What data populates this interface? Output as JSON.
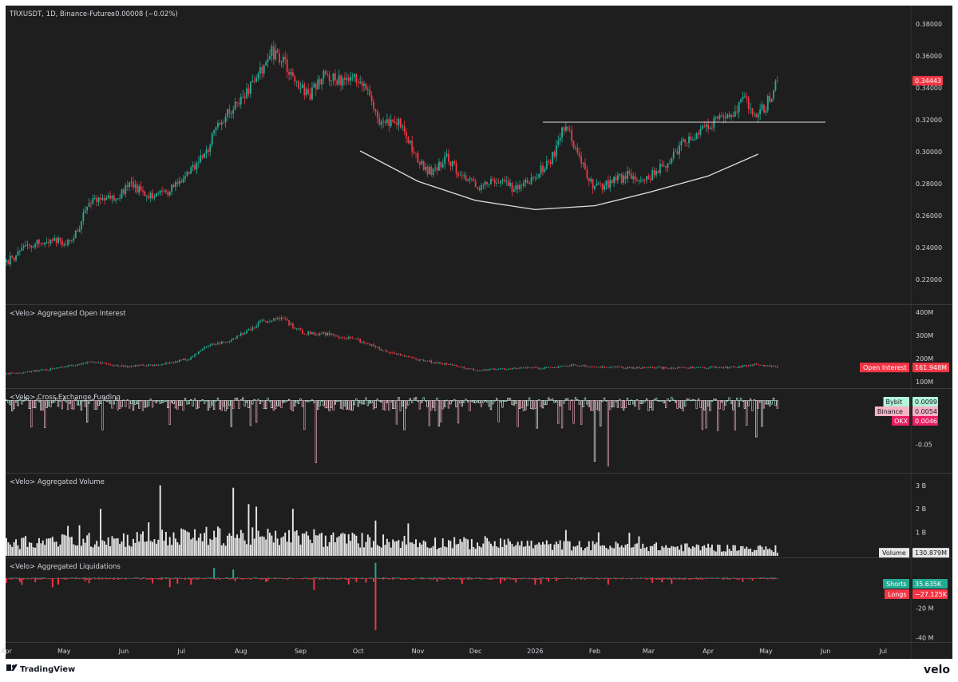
{
  "header": {
    "symbol_line": "TRXUSDT, 1D, Binance-Futures",
    "change": "−0.00008 (−0.02%)"
  },
  "footer": {
    "brand": "TradingView",
    "watermark": "velo"
  },
  "colors": {
    "up": "#22ab94",
    "down": "#f23645",
    "bg": "#1e1e1e",
    "panel_bg": "#161616",
    "grid": "#2b2b2b",
    "axis_text": "#d1d4dc",
    "line": "#e0e0e0",
    "price_tag": "#f23645",
    "bybit_tag": "#b2f5d9",
    "binance_tag": "#f7b3c6",
    "okx_tag": "#e91e63"
  },
  "chart_data": [
    {
      "type": "candlestick",
      "panel": "price",
      "x_range": [
        "2025-04-01",
        "2026-07-15"
      ],
      "ylim": [
        0.206,
        0.384
      ],
      "y_ticks": [
        "0.22000",
        "0.24000",
        "0.26000",
        "0.28000",
        "0.30000",
        "0.32000",
        "0.34000",
        "0.36000",
        "0.38000"
      ],
      "y_tick_values": [
        0.22,
        0.24,
        0.26,
        0.28,
        0.3,
        0.32,
        0.34,
        0.36,
        0.38
      ],
      "last_price_label": "0.34443",
      "last_price": 0.34443,
      "price_path": [
        [
          "2025-04-01",
          0.231
        ],
        [
          "2025-04-10",
          0.239
        ],
        [
          "2025-04-22",
          0.245
        ],
        [
          "2025-05-05",
          0.243
        ],
        [
          "2025-05-15",
          0.27
        ],
        [
          "2025-05-28",
          0.272
        ],
        [
          "2025-06-05",
          0.279
        ],
        [
          "2025-06-15",
          0.273
        ],
        [
          "2025-06-25",
          0.276
        ],
        [
          "2025-07-05",
          0.287
        ],
        [
          "2025-07-14",
          0.3
        ],
        [
          "2025-07-20",
          0.318
        ],
        [
          "2025-07-28",
          0.328
        ],
        [
          "2025-08-05",
          0.339
        ],
        [
          "2025-08-12",
          0.352
        ],
        [
          "2025-08-17",
          0.362
        ],
        [
          "2025-08-23",
          0.356
        ],
        [
          "2025-08-30",
          0.342
        ],
        [
          "2025-09-06",
          0.335
        ],
        [
          "2025-09-13",
          0.349
        ],
        [
          "2025-09-22",
          0.344
        ],
        [
          "2025-09-30",
          0.345
        ],
        [
          "2025-10-06",
          0.342
        ],
        [
          "2025-10-11",
          0.32
        ],
        [
          "2025-10-22",
          0.318
        ],
        [
          "2025-11-01",
          0.296
        ],
        [
          "2025-11-08",
          0.286
        ],
        [
          "2025-11-16",
          0.297
        ],
        [
          "2025-11-23",
          0.286
        ],
        [
          "2025-12-01",
          0.278
        ],
        [
          "2025-12-10",
          0.283
        ],
        [
          "2025-12-20",
          0.278
        ],
        [
          "2026-01-01",
          0.284
        ],
        [
          "2026-01-10",
          0.297
        ],
        [
          "2026-01-17",
          0.318
        ],
        [
          "2026-01-23",
          0.298
        ],
        [
          "2026-02-01",
          0.277
        ],
        [
          "2026-02-08",
          0.28
        ],
        [
          "2026-02-18",
          0.285
        ],
        [
          "2026-03-01",
          0.284
        ],
        [
          "2026-03-10",
          0.292
        ],
        [
          "2026-03-20",
          0.308
        ],
        [
          "2026-04-01",
          0.316
        ],
        [
          "2026-04-12",
          0.323
        ],
        [
          "2026-04-20",
          0.333
        ],
        [
          "2026-04-25",
          0.321
        ],
        [
          "2026-05-01",
          0.329
        ],
        [
          "2026-05-07",
          0.3444
        ]
      ],
      "annotations": {
        "resistance_line": {
          "from": "2026-01-05",
          "to": "2026-06-01",
          "y": 0.3185
        },
        "rounding_bottom": [
          [
            "2025-10-02",
            0.3005
          ],
          [
            "2025-11-01",
            0.2815
          ],
          [
            "2025-12-01",
            0.2695
          ],
          [
            "2026-01-01",
            0.2638
          ],
          [
            "2026-02-01",
            0.2662
          ],
          [
            "2026-03-01",
            0.2745
          ],
          [
            "2026-04-01",
            0.2848
          ],
          [
            "2026-04-27",
            0.2985
          ]
        ]
      }
    },
    {
      "type": "candlestick",
      "panel": "open_interest",
      "title": "<Velo> Aggregated Open Interest",
      "ylim": [
        80,
        420
      ],
      "y_ticks": [
        "100M",
        "200M",
        "300M",
        "400M"
      ],
      "y_tick_values": [
        100,
        200,
        300,
        400
      ],
      "units": "M",
      "path": [
        [
          "2025-04-01",
          135
        ],
        [
          "2025-04-25",
          155
        ],
        [
          "2025-05-15",
          185
        ],
        [
          "2025-06-01",
          165
        ],
        [
          "2025-06-20",
          175
        ],
        [
          "2025-07-05",
          200
        ],
        [
          "2025-07-15",
          255
        ],
        [
          "2025-07-28",
          285
        ],
        [
          "2025-08-12",
          360
        ],
        [
          "2025-08-22",
          375
        ],
        [
          "2025-09-02",
          310
        ],
        [
          "2025-09-15",
          305
        ],
        [
          "2025-10-01",
          280
        ],
        [
          "2025-10-15",
          230
        ],
        [
          "2025-11-01",
          195
        ],
        [
          "2025-11-20",
          170
        ],
        [
          "2025-12-01",
          150
        ],
        [
          "2025-12-20",
          158
        ],
        [
          "2026-01-10",
          160
        ],
        [
          "2026-01-20",
          172
        ],
        [
          "2026-02-10",
          162
        ],
        [
          "2026-03-15",
          160
        ],
        [
          "2026-04-15",
          163
        ],
        [
          "2026-04-25",
          175
        ],
        [
          "2026-05-07",
          162
        ]
      ],
      "last_label": "Open Interest",
      "last_value_label": "161.948M",
      "last_value": 161.948
    },
    {
      "type": "bar",
      "panel": "funding",
      "title": "<Velo> Cross Exchange Funding",
      "ylim": [
        -0.085,
        0.02
      ],
      "y_ticks": [
        "-0.05"
      ],
      "y_tick_values": [
        -0.05
      ],
      "notable_dips": [
        [
          "2025-09-09",
          -0.074
        ],
        [
          "2026-02-01",
          -0.072
        ],
        [
          "2026-02-08",
          -0.078
        ],
        [
          "2026-04-26",
          -0.04
        ]
      ],
      "exchanges": [
        {
          "name": "Bybit",
          "value_label": "0.0099",
          "value": 0.0099,
          "color": "#b2f5d9"
        },
        {
          "name": "Binance",
          "value_label": "0.0054",
          "value": 0.0054,
          "color": "#f7b3c6"
        },
        {
          "name": "OKX",
          "value_label": "0.0046",
          "value": 0.0046,
          "color": "#e91e63"
        }
      ]
    },
    {
      "type": "bar",
      "panel": "volume",
      "title": "<Velo> Aggregated Volume",
      "ylim": [
        0,
        3.4
      ],
      "y_ticks": [
        "1 B",
        "2 B",
        "3 B"
      ],
      "y_tick_values": [
        1,
        2,
        3
      ],
      "units": "B",
      "spikes": [
        [
          "2025-06-20",
          3.0
        ],
        [
          "2025-07-28",
          2.9
        ],
        [
          "2025-08-05",
          2.2
        ],
        [
          "2025-08-28",
          2.0
        ],
        [
          "2025-05-20",
          2.0
        ],
        [
          "2025-10-10",
          1.5
        ],
        [
          "2026-01-17",
          1.1
        ],
        [
          "2026-02-03",
          1.0
        ]
      ],
      "last_label": "Volume",
      "last_value_label": "130.879M",
      "last_value": 0.130879
    },
    {
      "type": "bar",
      "panel": "liquidations",
      "title": "<Velo> Aggregated Liquidations",
      "ylim": [
        -42,
        12
      ],
      "y_ticks": [
        "-20 M",
        "-40 M"
      ],
      "y_tick_values": [
        -20,
        -40
      ],
      "units": "M",
      "spikes": [
        [
          "2025-10-10",
          10.5,
          "shorts"
        ],
        [
          "2025-10-10",
          -35,
          "longs"
        ],
        [
          "2025-07-18",
          7,
          "shorts"
        ],
        [
          "2025-07-28",
          6,
          "shorts"
        ],
        [
          "2025-09-08",
          -8,
          "longs"
        ],
        [
          "2025-04-25",
          -6,
          "longs"
        ],
        [
          "2025-06-25",
          -6,
          "longs"
        ]
      ],
      "shorts": {
        "label": "Shorts",
        "value_label": "35.635K",
        "value": 0.035635,
        "color": "#22ab94"
      },
      "longs": {
        "label": "Longs",
        "value_label": "−27.125K",
        "value": -0.027125,
        "color": "#f23645"
      }
    }
  ],
  "x_axis": {
    "labels": [
      "Apr",
      "May",
      "Jun",
      "Jul",
      "Aug",
      "Sep",
      "Oct",
      "Nov",
      "Dec",
      "2026",
      "Feb",
      "Mar",
      "Apr",
      "May",
      "Jun",
      "Jul"
    ],
    "dates": [
      "2025-04-01",
      "2025-05-01",
      "2025-06-01",
      "2025-07-01",
      "2025-08-01",
      "2025-09-01",
      "2025-10-01",
      "2025-11-01",
      "2025-12-01",
      "2026-01-01",
      "2026-02-01",
      "2026-03-01",
      "2026-04-01",
      "2026-05-01",
      "2026-06-01",
      "2026-07-01"
    ]
  }
}
